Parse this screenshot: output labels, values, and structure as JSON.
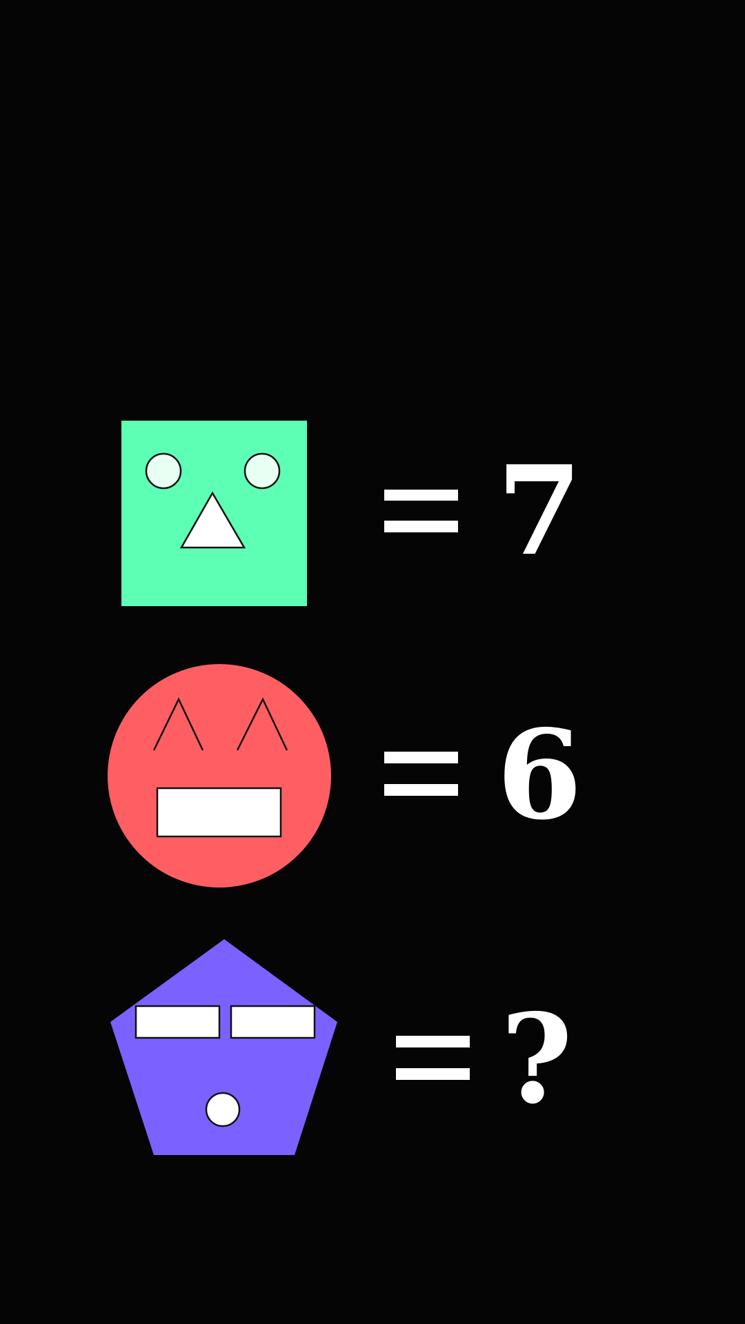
{
  "puzzle": {
    "rows": [
      {
        "shape": "square",
        "face": "round-eyes-triangle-nose",
        "equals": "=",
        "value": "7",
        "color": "#5dffb4"
      },
      {
        "shape": "circle",
        "face": "caret-eyes-rect-mouth",
        "equals": "=",
        "value": "6",
        "color": "#ff5f63"
      },
      {
        "shape": "pentagon",
        "face": "bar-eyes-round-mouth",
        "equals": "=",
        "value": "?",
        "color": "#7b61ff"
      }
    ],
    "colors": {
      "background": "#050505",
      "feature_fill": "#ffffff",
      "eye_fill": "#e8fff4",
      "outline": "#111111",
      "text": "#ffffff"
    }
  }
}
